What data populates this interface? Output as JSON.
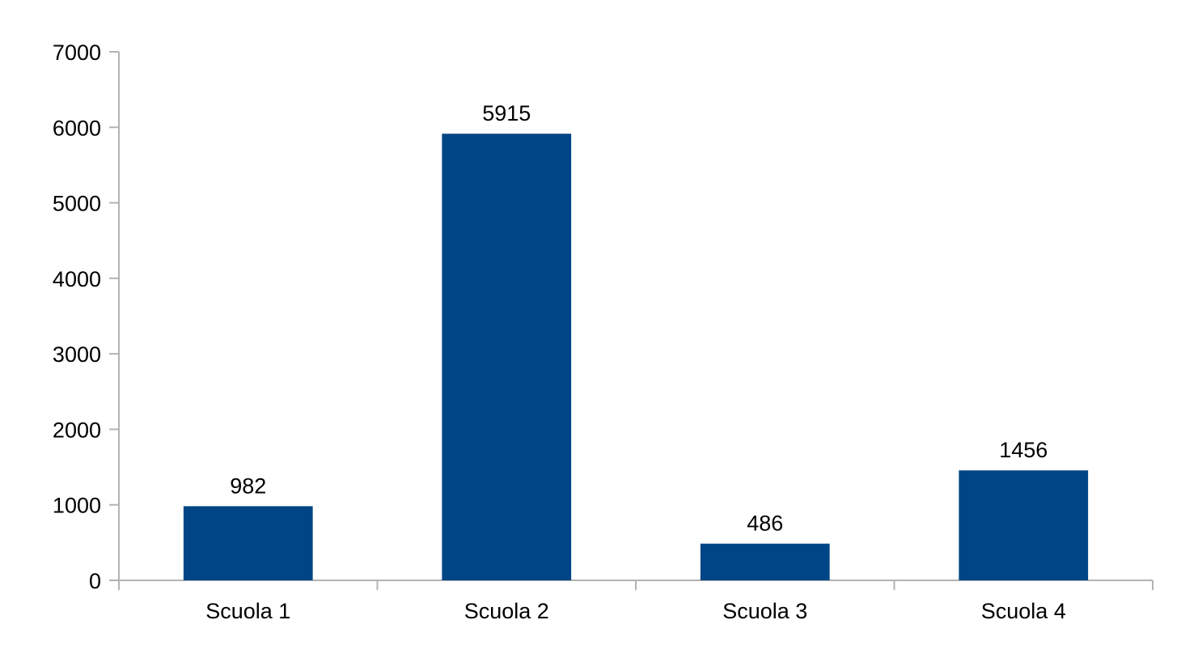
{
  "chart_data": {
    "type": "bar",
    "title": "",
    "xlabel": "",
    "ylabel": "",
    "categories": [
      "Scuola 1",
      "Scuola 2",
      "Scuola 3",
      "Scuola 4"
    ],
    "values": [
      982,
      5915,
      486,
      1456
    ],
    "data_labels": [
      "982",
      "5915",
      "486",
      "1456"
    ],
    "ylim": [
      0,
      7000
    ],
    "yticks": [
      0,
      1000,
      2000,
      3000,
      4000,
      5000,
      6000,
      7000
    ],
    "ytick_labels": [
      "0",
      "1000",
      "2000",
      "3000",
      "4000",
      "5000",
      "6000",
      "7000"
    ],
    "grid": false,
    "legend": "none",
    "colors": {
      "bar": "#004586",
      "axis": "#b3b3b3",
      "text": "#000000"
    }
  }
}
